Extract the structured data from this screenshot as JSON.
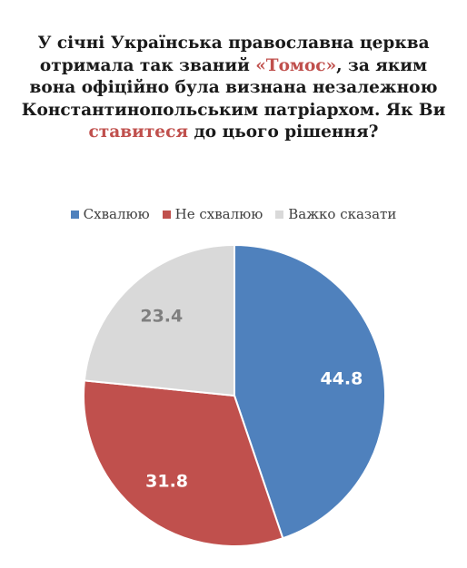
{
  "title": {
    "part1": "У січні Українська православна церква отримала так званий ",
    "quote_open": "«",
    "highlight1": "Томос",
    "quote_close": "»",
    "part2": ", за яким вона офіційно була визнана незалежною Константинопольським патріархом. Як Ви ",
    "highlight2": "ставитеся",
    "part3": " до цього рішення?"
  },
  "chart_data": {
    "type": "pie",
    "title": "",
    "legend_position": "top",
    "series": [
      {
        "label": "Схвалюю",
        "value": 44.8,
        "color": "#4f81bd",
        "label_color": "#ffffff"
      },
      {
        "label": "Не схвалюю",
        "value": 31.8,
        "color": "#c0504d",
        "label_color": "#ffffff"
      },
      {
        "label": "Важко сказати",
        "value": 23.4,
        "color": "#d9d9d9",
        "label_color": "#7f7f7f"
      }
    ]
  }
}
